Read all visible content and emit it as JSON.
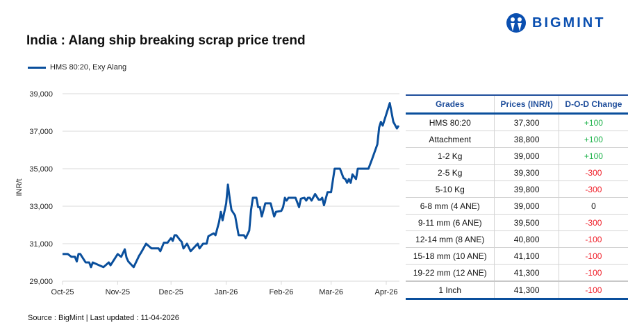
{
  "title": "India : Alang ship breaking scrap price trend",
  "brand": {
    "name": "BIGMINT",
    "color": "#0a4fb0"
  },
  "source": "Source : BigMint | Last updated : 11-04-2026",
  "chart_data": {
    "type": "line",
    "title": "India : Alang ship breaking scrap price trend",
    "ylabel": "INR/t",
    "xlabel": "",
    "ylim": [
      29000,
      39000
    ],
    "yticks": [
      "29,000",
      "31,000",
      "33,000",
      "35,000",
      "37,000",
      "39,000"
    ],
    "yticks_values": [
      29000,
      31000,
      33000,
      35000,
      37000,
      39000
    ],
    "xticks": [
      "Oct-25",
      "Nov-25",
      "Dec-25",
      "Jan-26",
      "Feb-26",
      "Mar-26",
      "Apr-26"
    ],
    "xticks_dates": [
      "2025-10-01",
      "2025-11-01",
      "2025-12-01",
      "2026-01-01",
      "2026-02-01",
      "2026-03-01",
      "2026-04-01"
    ],
    "grid": "horizontal",
    "legend_position": "top-left",
    "series": [
      {
        "name": "HMS 80:20, Exy Alang",
        "color": "#0a4f9c",
        "points": [
          [
            "2025-10-01",
            30450
          ],
          [
            "2025-10-04",
            30450
          ],
          [
            "2025-10-06",
            30300
          ],
          [
            "2025-10-08",
            30300
          ],
          [
            "2025-10-09",
            30050
          ],
          [
            "2025-10-10",
            30450
          ],
          [
            "2025-10-11",
            30450
          ],
          [
            "2025-10-14",
            30000
          ],
          [
            "2025-10-16",
            30000
          ],
          [
            "2025-10-17",
            29750
          ],
          [
            "2025-10-18",
            30000
          ],
          [
            "2025-10-24",
            29750
          ],
          [
            "2025-10-27",
            30000
          ],
          [
            "2025-10-28",
            29850
          ],
          [
            "2025-10-30",
            30150
          ],
          [
            "2025-11-01",
            30450
          ],
          [
            "2025-11-03",
            30300
          ],
          [
            "2025-11-05",
            30700
          ],
          [
            "2025-11-06",
            30250
          ],
          [
            "2025-11-07",
            30050
          ],
          [
            "2025-11-10",
            29750
          ],
          [
            "2025-11-13",
            30350
          ],
          [
            "2025-11-14",
            30500
          ],
          [
            "2025-11-17",
            31000
          ],
          [
            "2025-11-20",
            30750
          ],
          [
            "2025-11-24",
            30750
          ],
          [
            "2025-11-25",
            30600
          ],
          [
            "2025-11-27",
            31050
          ],
          [
            "2025-11-29",
            31050
          ],
          [
            "2025-12-01",
            31300
          ],
          [
            "2025-12-02",
            31150
          ],
          [
            "2025-12-03",
            31450
          ],
          [
            "2025-12-04",
            31450
          ],
          [
            "2025-12-06",
            31200
          ],
          [
            "2025-12-07",
            31100
          ],
          [
            "2025-12-08",
            30750
          ],
          [
            "2025-12-10",
            31000
          ],
          [
            "2025-12-12",
            30600
          ],
          [
            "2025-12-16",
            31000
          ],
          [
            "2025-12-17",
            30750
          ],
          [
            "2025-12-19",
            31000
          ],
          [
            "2025-12-21",
            31000
          ],
          [
            "2025-12-22",
            31400
          ],
          [
            "2025-12-25",
            31550
          ],
          [
            "2025-12-26",
            31450
          ],
          [
            "2025-12-28",
            32150
          ],
          [
            "2025-12-29",
            32700
          ],
          [
            "2025-12-30",
            32250
          ],
          [
            "2026-01-01",
            33150
          ],
          [
            "2026-01-02",
            34150
          ],
          [
            "2026-01-03",
            33400
          ],
          [
            "2026-01-04",
            32800
          ],
          [
            "2026-01-06",
            32500
          ],
          [
            "2026-01-08",
            31450
          ],
          [
            "2026-01-11",
            31450
          ],
          [
            "2026-01-12",
            31300
          ],
          [
            "2026-01-14",
            31700
          ],
          [
            "2026-01-15",
            32800
          ],
          [
            "2026-01-16",
            33450
          ],
          [
            "2026-01-18",
            33450
          ],
          [
            "2026-01-19",
            32950
          ],
          [
            "2026-01-20",
            32950
          ],
          [
            "2026-01-21",
            32450
          ],
          [
            "2026-01-23",
            33150
          ],
          [
            "2026-01-26",
            33150
          ],
          [
            "2026-01-27",
            32800
          ],
          [
            "2026-01-28",
            32450
          ],
          [
            "2026-01-29",
            32700
          ],
          [
            "2026-02-01",
            32750
          ],
          [
            "2026-02-02",
            32950
          ],
          [
            "2026-02-03",
            33450
          ],
          [
            "2026-02-04",
            33300
          ],
          [
            "2026-02-05",
            33450
          ],
          [
            "2026-02-09",
            33450
          ],
          [
            "2026-02-11",
            32950
          ],
          [
            "2026-02-12",
            33400
          ],
          [
            "2026-02-14",
            33450
          ],
          [
            "2026-02-15",
            33300
          ],
          [
            "2026-02-16",
            33450
          ],
          [
            "2026-02-17",
            33450
          ],
          [
            "2026-02-18",
            33300
          ],
          [
            "2026-02-20",
            33650
          ],
          [
            "2026-02-22",
            33350
          ],
          [
            "2026-02-23",
            33350
          ],
          [
            "2026-02-24",
            33450
          ],
          [
            "2026-02-25",
            33050
          ],
          [
            "2026-02-26",
            33400
          ],
          [
            "2026-02-27",
            33750
          ],
          [
            "2026-03-01",
            33750
          ],
          [
            "2026-03-03",
            35000
          ],
          [
            "2026-03-06",
            35000
          ],
          [
            "2026-03-08",
            34500
          ],
          [
            "2026-03-09",
            34450
          ],
          [
            "2026-03-10",
            34250
          ],
          [
            "2026-03-11",
            34450
          ],
          [
            "2026-03-12",
            34250
          ],
          [
            "2026-03-13",
            34700
          ],
          [
            "2026-03-15",
            34450
          ],
          [
            "2026-03-16",
            35000
          ],
          [
            "2026-03-22",
            35000
          ],
          [
            "2026-03-24",
            35500
          ],
          [
            "2026-03-27",
            36300
          ],
          [
            "2026-03-28",
            37200
          ],
          [
            "2026-03-29",
            37500
          ],
          [
            "2026-03-30",
            37300
          ],
          [
            "2026-04-03",
            38500
          ],
          [
            "2026-04-05",
            37500
          ],
          [
            "2026-04-07",
            37150
          ],
          [
            "2026-04-08",
            37300
          ]
        ]
      }
    ]
  },
  "table": {
    "headers": [
      "Grades",
      "Prices (INR/t)",
      "D-O-D Change"
    ],
    "rows": [
      {
        "grade": "HMS 80:20",
        "price": "37,300",
        "change": "+100",
        "trend": "pos"
      },
      {
        "grade": "Attachment",
        "price": "38,800",
        "change": "+100",
        "trend": "pos"
      },
      {
        "grade": "1-2 Kg",
        "price": "39,000",
        "change": "+100",
        "trend": "pos"
      },
      {
        "grade": "2-5 Kg",
        "price": "39,300",
        "change": "-300",
        "trend": "neg"
      },
      {
        "grade": "5-10 Kg",
        "price": "39,800",
        "change": "-300",
        "trend": "neg"
      },
      {
        "grade": "6-8 mm (4 ANE)",
        "price": "39,000",
        "change": "0",
        "trend": "zero"
      },
      {
        "grade": "9-11 mm (6 ANE)",
        "price": "39,500",
        "change": "-300",
        "trend": "neg"
      },
      {
        "grade": "12-14 mm (8 ANE)",
        "price": "40,800",
        "change": "-100",
        "trend": "neg"
      },
      {
        "grade": "15-18 mm (10 ANE)",
        "price": "41,100",
        "change": "-100",
        "trend": "neg"
      },
      {
        "grade": "19-22 mm (12 ANE)",
        "price": "41,300",
        "change": "-100",
        "trend": "neg"
      },
      {
        "grade": "1 Inch",
        "price": "41,300",
        "change": "-100",
        "trend": "neg"
      }
    ]
  }
}
